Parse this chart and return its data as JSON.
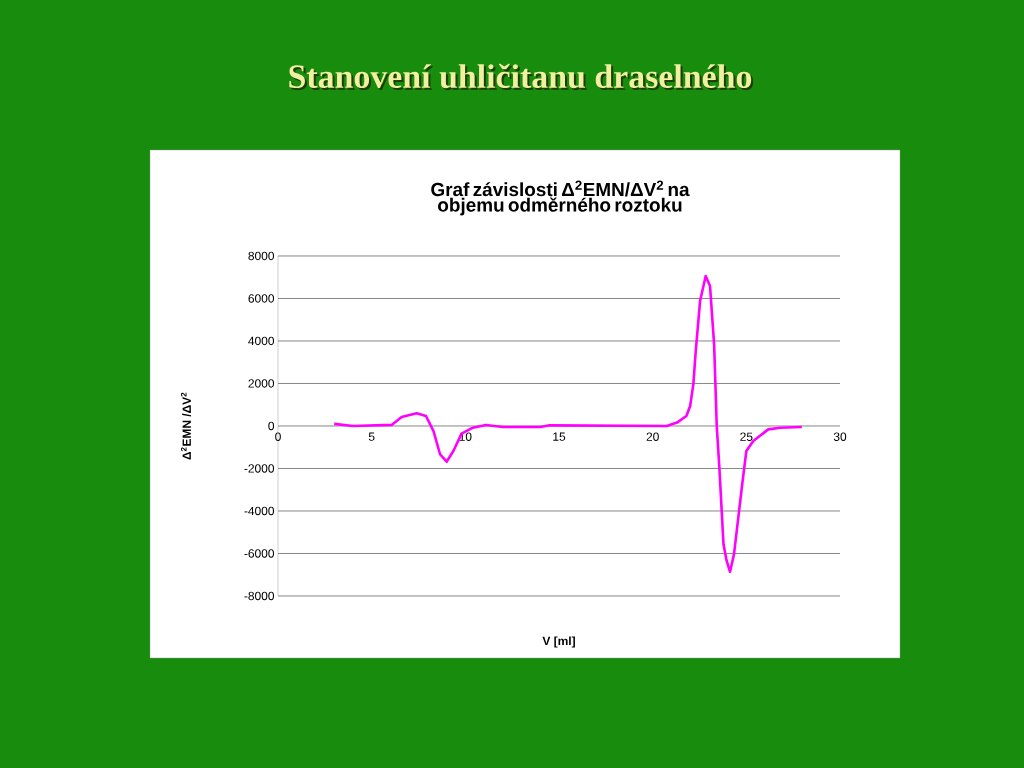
{
  "chart_data": {
    "type": "line",
    "title": "Stanovení uhličitanu draselného",
    "subtitle": "Graf závislosti Δ$^{2}$EMN/ΔV$^{2}$ na objemu odměrného roztoku",
    "xlabel": "V [ml]",
    "ylabel": "Δ$^{2}$EMN /ΔV$^{2}$",
    "x": [
      3.0,
      4.0,
      6.07,
      6.6,
      7.4,
      7.9,
      8.3,
      8.65,
      9.0,
      9.36,
      9.8,
      10.4,
      11.1,
      12.0,
      14.0,
      14.5,
      20.75,
      21.3,
      21.8,
      22.0,
      22.17,
      22.3,
      22.53,
      22.83,
      23.06,
      23.28,
      23.42,
      23.56,
      23.78,
      23.95,
      24.13,
      24.34,
      24.57,
      24.8,
      25.0,
      25.37,
      26.17,
      26.8,
      27.96
    ],
    "series": [
      {
        "color": "#ff00ff",
        "values": [
          100,
          0,
          50,
          420,
          600,
          470,
          -240,
          -1330,
          -1680,
          -1180,
          -360,
          -80,
          50,
          -50,
          -50,
          30,
          0,
          160,
          470,
          940,
          1960,
          3530,
          5880,
          7060,
          6590,
          3840,
          0,
          -1960,
          -5570,
          -6350,
          -6860,
          -6040,
          -4310,
          -2590,
          -1180,
          -710,
          -160,
          -80,
          -50
        ]
      }
    ],
    "xlim": [
      0,
      30
    ],
    "ylim": [
      -8000,
      8000
    ],
    "xticks": [
      0,
      5,
      10,
      15,
      20,
      25,
      30
    ],
    "yticks": [
      -8000,
      -6000,
      -4000,
      -2000,
      0,
      2000,
      4000,
      6000,
      8000
    ],
    "grid": "y"
  }
}
